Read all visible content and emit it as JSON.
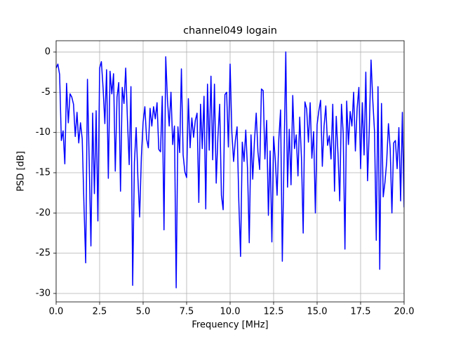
{
  "chart_data": {
    "type": "line",
    "title": "channel049 logain",
    "x_label": "Frequency [MHz]",
    "y_label": "PSD [dB]",
    "color": "#0000ff",
    "grid": true,
    "xlim": [
      0,
      20
    ],
    "ylim": [
      -31.05,
      1.4
    ],
    "xticks": [
      {
        "value": 0,
        "label": "0.0"
      },
      2.5,
      {
        "value": 5,
        "label": "5.0"
      },
      7.5,
      {
        "value": 10,
        "label": "10.0"
      },
      12.5,
      {
        "value": 15,
        "label": "15.0"
      },
      17.5,
      {
        "value": 20,
        "label": "20.0"
      }
    ],
    "yticks": [
      0,
      -5,
      -10,
      -15,
      -20,
      -25,
      -30
    ],
    "x": [
      0,
      0.1,
      0.2,
      0.3,
      0.4,
      0.5,
      0.6,
      0.7,
      0.8,
      0.9,
      1,
      1.1,
      1.2,
      1.3,
      1.4,
      1.5,
      1.6,
      1.7,
      1.8,
      1.9,
      2,
      2.1,
      2.2,
      2.3,
      2.4,
      2.5,
      2.6,
      2.7,
      2.8,
      2.9,
      3,
      3.1,
      3.2,
      3.3,
      3.4,
      3.5,
      3.6,
      3.7,
      3.8,
      3.9,
      4,
      4.1,
      4.2,
      4.3,
      4.4,
      4.5,
      4.6,
      4.7,
      4.8,
      4.9,
      5,
      5.1,
      5.2,
      5.3,
      5.4,
      5.5,
      5.6,
      5.7,
      5.8,
      5.9,
      6,
      6.1,
      6.2,
      6.3,
      6.4,
      6.5,
      6.6,
      6.7,
      6.8,
      6.9,
      7,
      7.1,
      7.2,
      7.3,
      7.4,
      7.5,
      7.6,
      7.7,
      7.8,
      7.9,
      8,
      8.1,
      8.2,
      8.3,
      8.4,
      8.5,
      8.6,
      8.7,
      8.8,
      8.9,
      9,
      9.1,
      9.2,
      9.3,
      9.4,
      9.5,
      9.6,
      9.7,
      9.8,
      9.9,
      10,
      10.1,
      10.2,
      10.3,
      10.4,
      10.5,
      10.6,
      10.7,
      10.8,
      10.9,
      11,
      11.1,
      11.2,
      11.3,
      11.4,
      11.5,
      11.6,
      11.7,
      11.8,
      11.9,
      12,
      12.1,
      12.2,
      12.3,
      12.4,
      12.5,
      12.6,
      12.7,
      12.8,
      12.9,
      13,
      13.1,
      13.2,
      13.3,
      13.4,
      13.5,
      13.6,
      13.7,
      13.8,
      13.9,
      14,
      14.1,
      14.2,
      14.3,
      14.4,
      14.5,
      14.6,
      14.7,
      14.8,
      14.9,
      15,
      15.1,
      15.2,
      15.3,
      15.4,
      15.5,
      15.6,
      15.7,
      15.8,
      15.9,
      16,
      16.1,
      16.2,
      16.3,
      16.4,
      16.5,
      16.6,
      16.7,
      16.8,
      16.9,
      17,
      17.1,
      17.2,
      17.3,
      17.4,
      17.5,
      17.6,
      17.7,
      17.8,
      17.9,
      18,
      18.1,
      18.2,
      18.3,
      18.4,
      18.5,
      18.6,
      18.7,
      18.8,
      18.9,
      19,
      19.1,
      19.2,
      19.3,
      19.4,
      19.5,
      19.6,
      19.7,
      19.8,
      19.9,
      20
    ],
    "values": [
      -2,
      -1.5,
      -2.8,
      -11,
      -9.8,
      -13.9,
      -3.9,
      -8.8,
      -5.2,
      -5.6,
      -6.5,
      -10.5,
      -7.5,
      -11.3,
      -8.8,
      -10.8,
      -19,
      -26.2,
      -3.4,
      -13.5,
      -24.1,
      -7.6,
      -17.6,
      -7.3,
      -21,
      -2,
      -1.2,
      -4.5,
      -8.9,
      -2.2,
      -15.7,
      -2.4,
      -5.2,
      -2.7,
      -14.8,
      -5.6,
      -3.8,
      -17.3,
      -4.4,
      -6.4,
      -2,
      -8.5,
      -14,
      -4.3,
      -29,
      -13.7,
      -9.4,
      -15.6,
      -20.5,
      -13,
      -8.7,
      -6.8,
      -10.8,
      -11.9,
      -7,
      -9.2,
      -6.8,
      -8.3,
      -6.3,
      -12.1,
      -12.4,
      -5.5,
      -22.1,
      -0.6,
      -6,
      -9.2,
      -5,
      -11.5,
      -9.2,
      -29.3,
      -9.3,
      -12.5,
      -2.1,
      -12.8,
      -14.9,
      -15.6,
      -5.8,
      -11.9,
      -8.2,
      -10.6,
      -8.5,
      -7.6,
      -18.7,
      -6.5,
      -12,
      -5.5,
      -19.5,
      -4,
      -12.2,
      -3,
      -13.4,
      -4,
      -16.3,
      -10.5,
      -6.5,
      -17.8,
      -19.6,
      -5.3,
      -5,
      -11.8,
      -1.5,
      -10,
      -13.6,
      -11,
      -9.3,
      -18.5,
      -25.4,
      -11.2,
      -13.6,
      -9.7,
      -14.5,
      -23.7,
      -10.3,
      -15.8,
      -11,
      -7.6,
      -12.4,
      -14.6,
      -4.6,
      -4.8,
      -13.3,
      -8.5,
      -20.3,
      -12.3,
      -23.6,
      -10.5,
      -13.5,
      -17.8,
      -10.8,
      -7.2,
      -26,
      -13,
      0,
      -16.8,
      -9.6,
      -16.5,
      -5.4,
      -12,
      -10.3,
      -15.4,
      -8.1,
      -13.1,
      -22.5,
      -6.2,
      -7.1,
      -11.2,
      -6.3,
      -13.2,
      -9.9,
      -20,
      -9,
      -7.3,
      -6,
      -14.2,
      -9.2,
      -6.7,
      -11.6,
      -10.4,
      -13.3,
      -6.5,
      -17.3,
      -8,
      -12.6,
      -18.5,
      -6.5,
      -10.1,
      -24.5,
      -6.1,
      -11.5,
      -7.4,
      -9.2,
      -5,
      -12.3,
      -7,
      -4.4,
      -14.5,
      -6.3,
      -12.8,
      -2.5,
      -16,
      -9.5,
      -1,
      -6,
      -9.9,
      -23.4,
      -4.3,
      -27,
      -6.4,
      -18,
      -16.2,
      -13.6,
      -8.9,
      -12,
      -20,
      -11.3,
      -11,
      -14.5,
      -9.4,
      -18.5,
      -7.5,
      -19.3
    ]
  }
}
